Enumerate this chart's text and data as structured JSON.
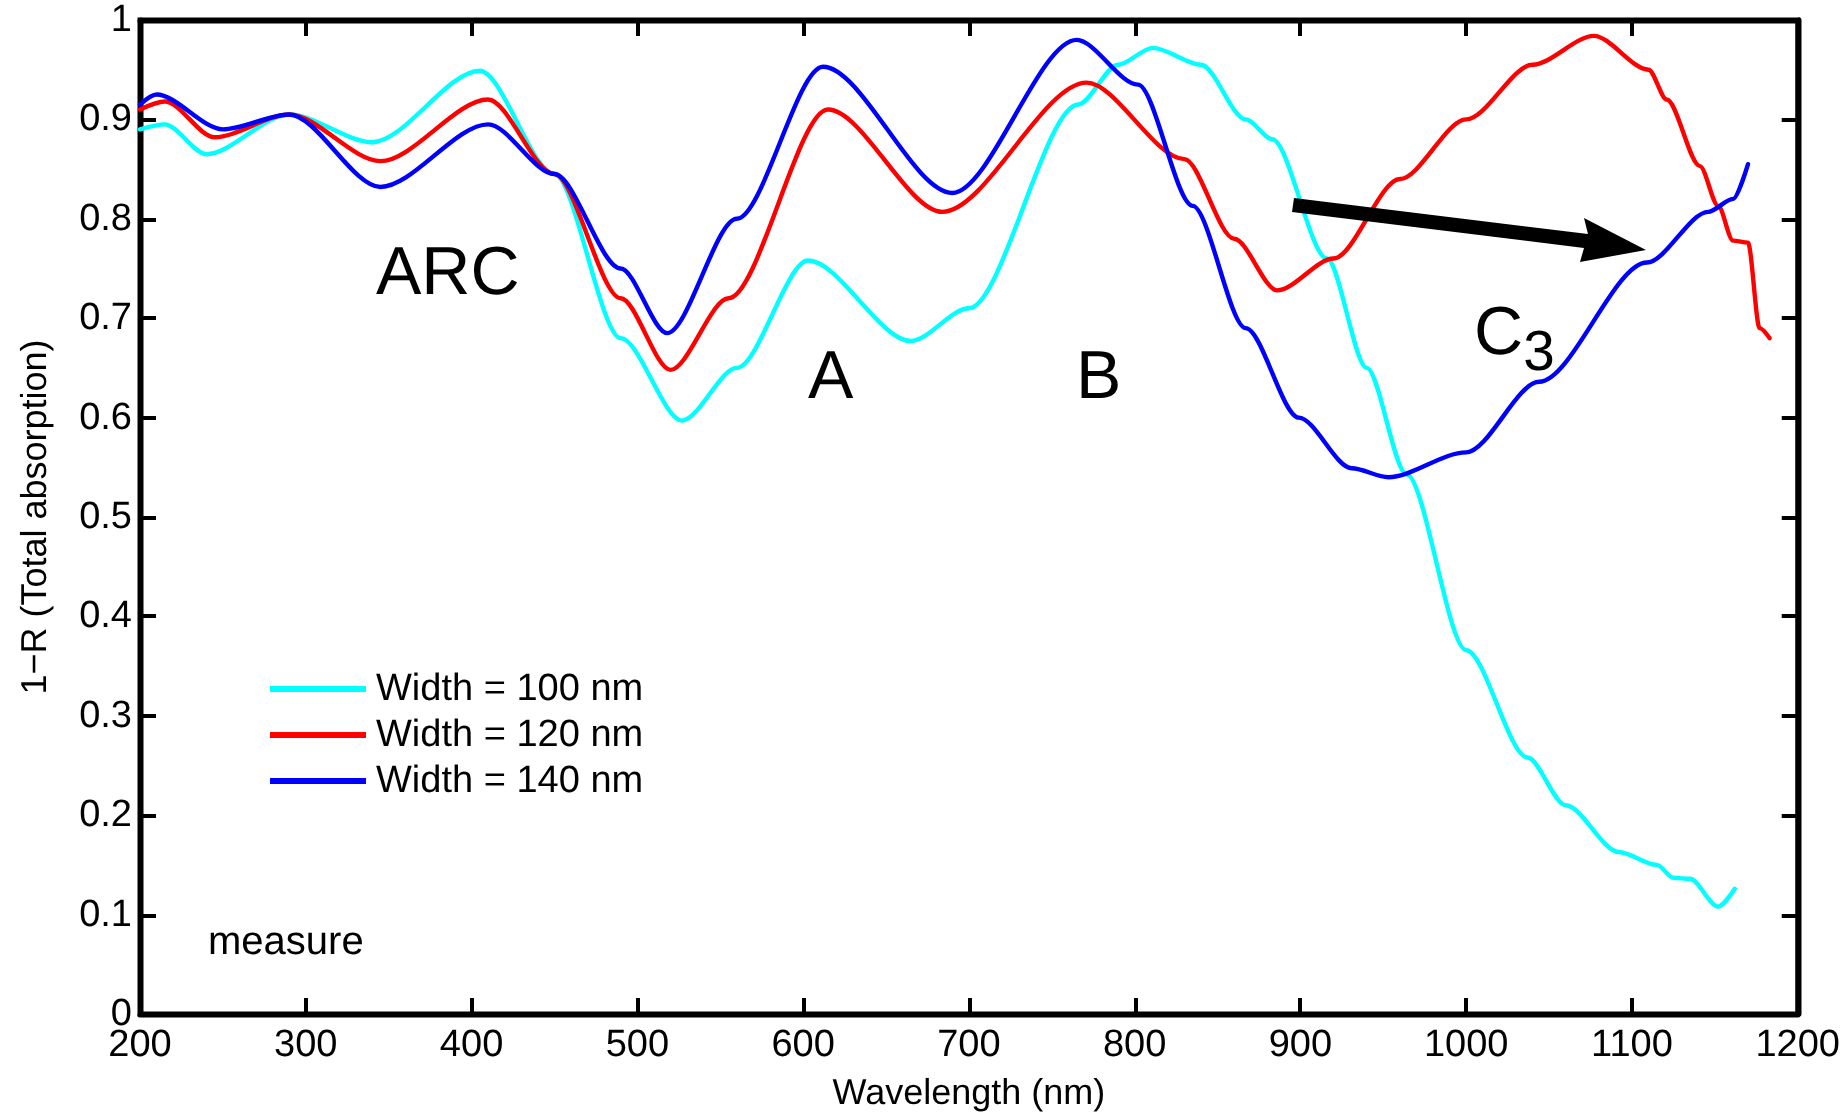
{
  "chart_data": {
    "type": "line",
    "xlabel": "Wavelength (nm)",
    "ylabel": "1−R (Total absorption)",
    "xlim": [
      200,
      1200
    ],
    "xticks": [
      200,
      300,
      400,
      500,
      600,
      700,
      800,
      900,
      1000,
      1100,
      1200
    ],
    "ylim": [
      0,
      1
    ],
    "yticks": [
      0,
      0.1,
      0.2,
      0.3,
      0.4,
      0.5,
      0.6,
      0.7,
      0.8,
      0.9,
      1
    ],
    "grid": false,
    "legend": "left",
    "marker": "none",
    "line_style": "solid",
    "series": [
      {
        "name": "Width = 100 nm",
        "color": "#00ffff",
        "x": [
          200,
          215,
          240,
          290,
          340,
          405,
          450,
          490,
          527,
          560,
          603,
          665,
          700,
          766,
          790,
          811,
          840,
          867,
          883,
          916,
          940,
          964,
          1000,
          1037,
          1060,
          1092,
          1115,
          1125,
          1135,
          1152,
          1162
        ],
        "values": [
          0.89,
          0.895,
          0.865,
          0.905,
          0.877,
          0.949,
          0.845,
          0.68,
          0.597,
          0.65,
          0.758,
          0.677,
          0.71,
          0.915,
          0.955,
          0.972,
          0.955,
          0.9,
          0.88,
          0.76,
          0.65,
          0.543,
          0.366,
          0.258,
          0.21,
          0.163,
          0.15,
          0.137,
          0.136,
          0.108,
          0.126
        ]
      },
      {
        "name": "Width = 120 nm",
        "color": "#ff0000",
        "x": [
          200,
          215,
          245,
          290,
          345,
          410,
          450,
          490,
          520,
          555,
          615,
          684,
          771,
          830,
          860,
          886,
          920,
          960,
          1000,
          1040,
          1077,
          1110,
          1121,
          1141,
          1152,
          1161,
          1170,
          1177,
          1183
        ],
        "values": [
          0.91,
          0.918,
          0.882,
          0.905,
          0.858,
          0.92,
          0.845,
          0.72,
          0.648,
          0.72,
          0.91,
          0.807,
          0.937,
          0.86,
          0.78,
          0.728,
          0.76,
          0.84,
          0.9,
          0.955,
          0.984,
          0.95,
          0.92,
          0.853,
          0.813,
          0.778,
          0.776,
          0.69,
          0.68
        ]
      },
      {
        "name": "Width = 140 nm",
        "color": "#0000ff",
        "x": [
          200,
          210,
          250,
          290,
          345,
          410,
          450,
          490,
          518,
          560,
          612,
          690,
          765,
          802,
          835,
          867,
          899,
          931,
          953,
          1000,
          1044,
          1109,
          1146,
          1161,
          1170
        ],
        "values": [
          0.915,
          0.925,
          0.89,
          0.905,
          0.832,
          0.895,
          0.845,
          0.75,
          0.685,
          0.8,
          0.953,
          0.826,
          0.98,
          0.935,
          0.813,
          0.69,
          0.6,
          0.549,
          0.54,
          0.565,
          0.636,
          0.756,
          0.807,
          0.82,
          0.855
        ]
      }
    ],
    "annotations": [
      "ARC",
      "A",
      "B",
      "C$_{3}$",
      "measure"
    ]
  }
}
